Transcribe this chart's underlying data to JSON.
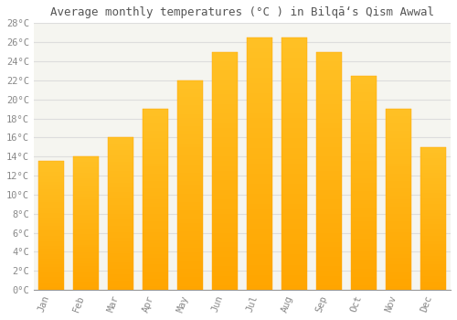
{
  "title": "Average monthly temperatures (°C ) in Bilqāʻs Qism Awwal",
  "months": [
    "Jan",
    "Feb",
    "Mar",
    "Apr",
    "May",
    "Jun",
    "Jul",
    "Aug",
    "Sep",
    "Oct",
    "Nov",
    "Dec"
  ],
  "values": [
    13.5,
    14.0,
    16.0,
    19.0,
    22.0,
    25.0,
    26.5,
    26.5,
    25.0,
    22.5,
    19.0,
    15.0
  ],
  "bar_color_top": "#FFC125",
  "bar_color_bottom": "#FFA500",
  "background_color": "#ffffff",
  "plot_bg_color": "#f5f5f0",
  "grid_color": "#dddddd",
  "text_color": "#888888",
  "title_color": "#555555",
  "ylim": [
    0,
    28
  ],
  "ytick_step": 2,
  "title_fontsize": 9,
  "tick_fontsize": 7.5
}
